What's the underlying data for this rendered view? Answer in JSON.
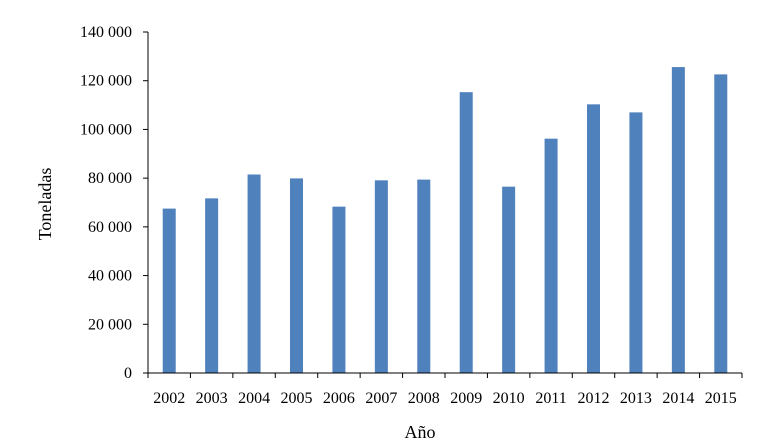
{
  "chart_data": {
    "type": "bar",
    "title": "",
    "xlabel": "Año",
    "ylabel": "Toneladas",
    "categories": [
      "2002",
      "2003",
      "2004",
      "2005",
      "2006",
      "2007",
      "2008",
      "2009",
      "2010",
      "2011",
      "2012",
      "2013",
      "2014",
      "2015"
    ],
    "values": [
      67500,
      71700,
      81500,
      79900,
      68300,
      79100,
      79400,
      115300,
      76500,
      96200,
      110300,
      107000,
      125600,
      122600
    ],
    "ylim": [
      0,
      140000
    ],
    "yticks": [
      0,
      20000,
      40000,
      60000,
      80000,
      100000,
      120000,
      140000
    ],
    "ytick_labels": [
      "0",
      "20 000",
      "40 000",
      "60 000",
      "80 000",
      "100 000",
      "120 000",
      "140 000"
    ],
    "grid": false,
    "legend": "none",
    "bar_color": "#4f81bd",
    "axis_color": "#000000"
  }
}
